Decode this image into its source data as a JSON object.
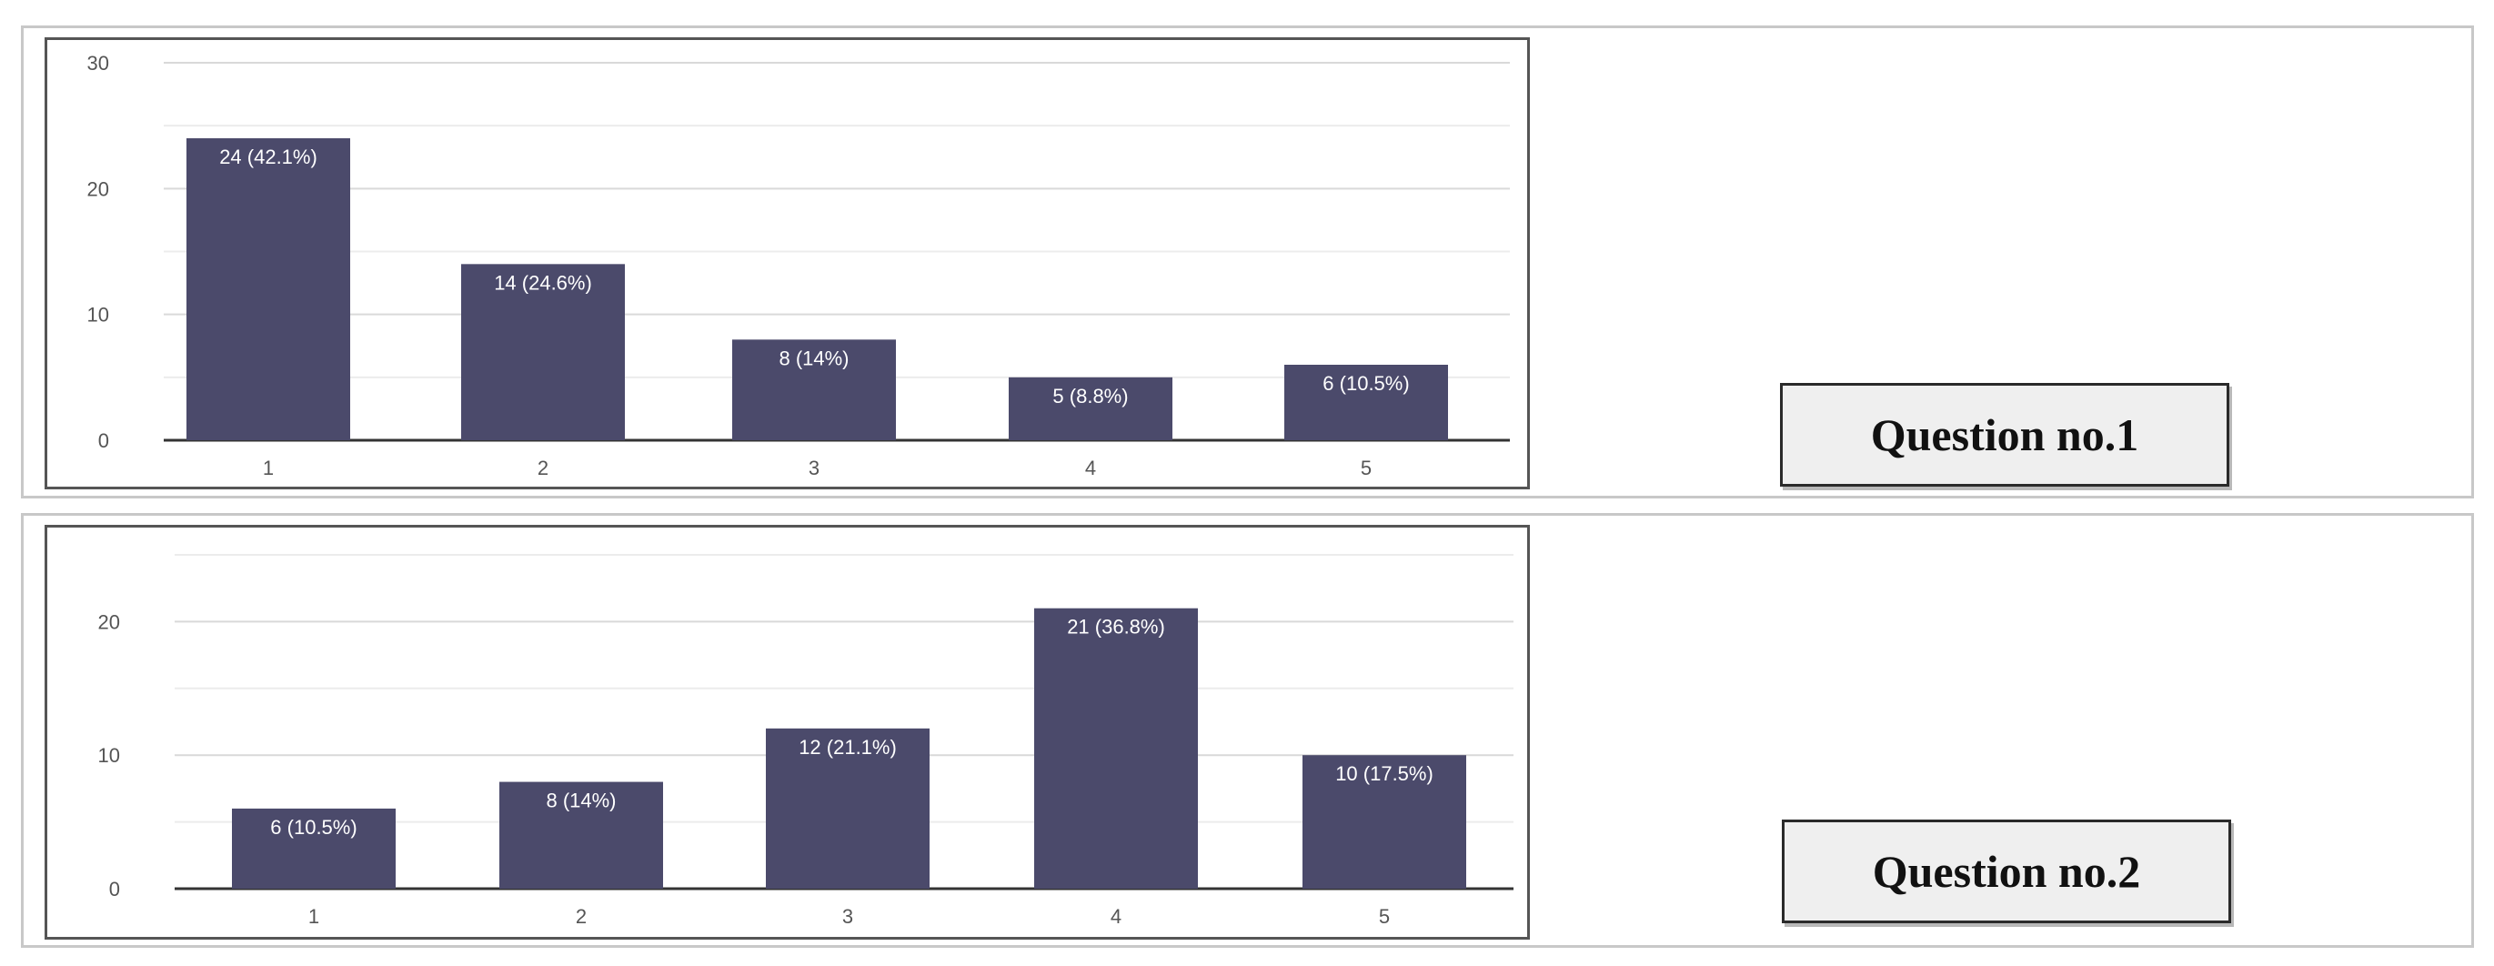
{
  "chart_data": [
    {
      "type": "bar",
      "categories": [
        "1",
        "2",
        "3",
        "4",
        "5"
      ],
      "values": [
        24,
        14,
        8,
        5,
        6
      ],
      "data_labels": [
        "24 (42.1%)",
        "14 (24.6%)",
        "8 (14%)",
        "5 (8.8%)",
        "6 (10.5%)"
      ],
      "y_ticks": [
        "0",
        "10",
        "20",
        "30"
      ],
      "ylim": [
        0,
        30
      ],
      "grid": true,
      "bar_color": "#4b4a6b",
      "label": "Question no.1"
    },
    {
      "type": "bar",
      "categories": [
        "1",
        "2",
        "3",
        "4",
        "5"
      ],
      "values": [
        6,
        8,
        12,
        21,
        10
      ],
      "data_labels": [
        "6 (10.5%)",
        "8 (14%)",
        "12 (21.1%)",
        "21 (36.8%)",
        "10 (17.5%)"
      ],
      "y_ticks": [
        "0",
        "10",
        "20"
      ],
      "ylim": [
        0,
        25
      ],
      "grid": true,
      "bar_color": "#4b4a6b",
      "label": "Question no.2"
    }
  ]
}
